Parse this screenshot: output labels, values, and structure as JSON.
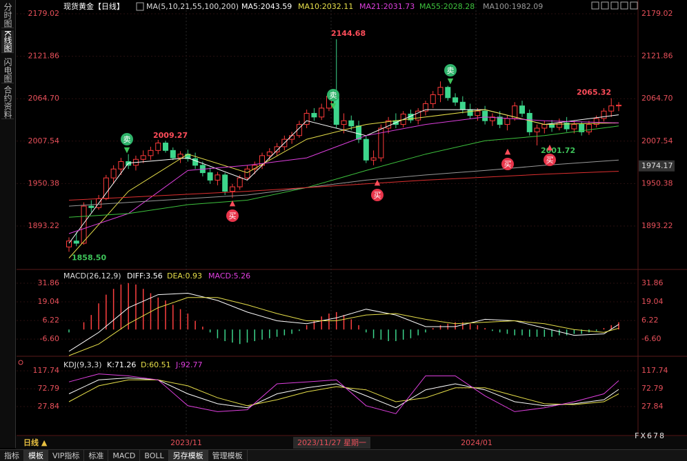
{
  "tabs_left": [
    "分时图",
    "K线图",
    "闪电图",
    "合约资料"
  ],
  "chart_data": [
    {
      "type": "candlestick",
      "title": "现货黄金【日线】",
      "indicator": "MA(5,10,21,55,100,200)",
      "up_color": "#ff3b3b",
      "down_color": "#3dd68c",
      "ylim": [
        1837.5,
        2190.2
      ],
      "yticks": [
        2179.02,
        2121.86,
        {
          "value": 2064.7,
          "label": "2064.70"
        },
        2007.54,
        1950.38,
        1893.22
      ],
      "ohlc": [
        [
          1865,
          1878,
          1858.5,
          1873
        ],
        [
          1873,
          1885,
          1866,
          1870
        ],
        [
          1870,
          1925,
          1868,
          1920
        ],
        [
          1920,
          1928,
          1912,
          1918
        ],
        [
          1918,
          1935,
          1915,
          1930
        ],
        [
          1930,
          1962,
          1928,
          1958
        ],
        [
          1958,
          1975,
          1950,
          1970
        ],
        [
          1970,
          1985,
          1962,
          1980
        ],
        [
          1980,
          1990,
          1970,
          1975
        ],
        [
          1975,
          1988,
          1968,
          1983
        ],
        [
          1983,
          1995,
          1978,
          1988
        ],
        [
          1988,
          2000,
          1982,
          1995
        ],
        [
          1995,
          2009.27,
          1990,
          2005
        ],
        [
          2005,
          2008,
          1992,
          1995
        ],
        [
          1995,
          1999,
          1982,
          1985
        ],
        [
          1985,
          1994,
          1978,
          1990
        ],
        [
          1990,
          1996,
          1980,
          1984
        ],
        [
          1984,
          1992,
          1970,
          1975
        ],
        [
          1975,
          1980,
          1960,
          1965
        ],
        [
          1965,
          1972,
          1950,
          1955
        ],
        [
          1955,
          1966,
          1948,
          1962
        ],
        [
          1962,
          1965,
          1935,
          1940
        ],
        [
          1940,
          1950,
          1931,
          1946
        ],
        [
          1946,
          1962,
          1942,
          1958
        ],
        [
          1958,
          1975,
          1955,
          1970
        ],
        [
          1970,
          1980,
          1963,
          1975
        ],
        [
          1975,
          1992,
          1970,
          1988
        ],
        [
          1988,
          1998,
          1982,
          1993
        ],
        [
          1993,
          2005,
          1988,
          2000
        ],
        [
          2000,
          2015,
          1995,
          2010
        ],
        [
          2010,
          2020,
          2004,
          2015
        ],
        [
          2015,
          2035,
          2012,
          2030
        ],
        [
          2030,
          2050,
          2025,
          2045
        ],
        [
          2045,
          2052,
          2035,
          2040
        ],
        [
          2040,
          2058,
          2036,
          2052
        ],
        [
          2052,
          2072,
          2048,
          2068
        ],
        [
          2068,
          2144.68,
          2025,
          2030
        ],
        [
          2030,
          2045,
          2018,
          2035
        ],
        [
          2035,
          2042,
          2022,
          2028
        ],
        [
          2028,
          2035,
          2005,
          2010
        ],
        [
          2010,
          2015,
          1978,
          1982
        ],
        [
          1982,
          1995,
          1975,
          1985
        ],
        [
          1985,
          2030,
          1980,
          2025
        ],
        [
          2025,
          2040,
          2018,
          2035
        ],
        [
          2035,
          2045,
          2025,
          2030
        ],
        [
          2030,
          2048,
          2026,
          2044
        ],
        [
          2044,
          2050,
          2032,
          2036
        ],
        [
          2036,
          2052,
          2030,
          2048
        ],
        [
          2048,
          2062,
          2042,
          2058
        ],
        [
          2058,
          2075,
          2052,
          2070
        ],
        [
          2070,
          2088,
          2060,
          2080
        ],
        [
          2080,
          2082,
          2062,
          2066
        ],
        [
          2066,
          2072,
          2055,
          2060
        ],
        [
          2060,
          2068,
          2045,
          2050
        ],
        [
          2050,
          2058,
          2038,
          2042
        ],
        [
          2042,
          2052,
          2035,
          2048
        ],
        [
          2048,
          2055,
          2030,
          2035
        ],
        [
          2035,
          2045,
          2028,
          2040
        ],
        [
          2040,
          2048,
          2025,
          2030
        ],
        [
          2030,
          2042,
          2022,
          2038
        ],
        [
          2038,
          2060,
          2035,
          2055
        ],
        [
          2055,
          2062,
          2040,
          2045
        ],
        [
          2045,
          2050,
          2015,
          2020
        ],
        [
          2020,
          2030,
          2001.72,
          2025
        ],
        [
          2025,
          2035,
          2018,
          2030
        ],
        [
          2030,
          2036,
          2020,
          2026
        ],
        [
          2026,
          2038,
          2022,
          2032
        ],
        [
          2032,
          2040,
          2020,
          2024
        ],
        [
          2024,
          2035,
          2018,
          2030
        ],
        [
          2030,
          2034,
          2015,
          2020
        ],
        [
          2020,
          2035,
          2016,
          2030
        ],
        [
          2030,
          2042,
          2026,
          2038
        ],
        [
          2038,
          2052,
          2034,
          2048
        ],
        [
          2048,
          2065.32,
          2040,
          2055
        ],
        [
          2055,
          2060,
          2048,
          2056
        ]
      ],
      "x": [
        0,
        8,
        16,
        24,
        32,
        40,
        48,
        56,
        64,
        74
      ],
      "series": [
        {
          "name": "MA5:2043.59",
          "color": "#ffffff",
          "values": [
            1870,
            1978,
            1985,
            1955,
            2035,
            2015,
            2050,
            2050,
            2030,
            2043
          ]
        },
        {
          "name": "MA10:2032.11",
          "color": "#e8e04a",
          "values": [
            1850,
            1940,
            1990,
            1965,
            2010,
            2030,
            2040,
            2050,
            2030,
            2032
          ]
        },
        {
          "name": "MA21:2031.73",
          "color": "#e040e0",
          "values": [
            1883,
            1910,
            1968,
            1975,
            1985,
            2015,
            2030,
            2040,
            2035,
            2032
          ]
        },
        {
          "name": "MA55:2028.28",
          "color": "#3ec43e",
          "values": [
            1905,
            1910,
            1922,
            1928,
            1945,
            1968,
            1990,
            2008,
            2015,
            2028
          ]
        },
        {
          "name": "MA100:1982.09",
          "color": "#9a9a9a",
          "values": [
            1920,
            1925,
            1930,
            1935,
            1945,
            1955,
            1962,
            1968,
            1975,
            1982
          ]
        },
        {
          "color": "#e03030",
          "values": [
            1928,
            1932,
            1936,
            1940,
            1945,
            1950,
            1955,
            1959,
            1963,
            1967
          ]
        }
      ],
      "annotations": [
        2144.68,
        2009.27,
        1858.5,
        2001.72,
        2065.32
      ],
      "annotation_labels": [
        "2144.68",
        "2009.27",
        "1858.50",
        "2001.72",
        "2065.32"
      ],
      "last_price": 1974.17,
      "signals": [
        "卖",
        "买",
        "卖",
        "买",
        "卖",
        "买",
        "买"
      ]
    },
    {
      "type": "macd",
      "title": "MACD(26,12,9)",
      "hist_label": "MACD:5.26",
      "ylim": [
        -17,
        39
      ],
      "yticks": [
        31.86,
        19.04,
        6.22,
        {
          "value": -6.6,
          "label": "-6.60"
        }
      ],
      "histogram": [
        -2,
        0,
        5,
        10,
        18,
        24,
        28,
        31,
        32,
        31,
        28,
        25,
        22,
        20,
        17,
        14,
        11,
        6,
        2,
        -2,
        -6,
        -8,
        -9,
        -10,
        -9,
        -8,
        -7,
        -6,
        -5,
        -4,
        -3,
        -1,
        3,
        6,
        9,
        11,
        12,
        10,
        7,
        3,
        -2,
        -6,
        -7,
        -8,
        -8,
        -7,
        -6,
        -4,
        -2,
        1,
        3,
        4,
        5,
        5,
        4,
        3,
        1,
        -1,
        -2,
        -3,
        -4,
        -4,
        -5,
        -5,
        -5,
        -5,
        -4,
        -4,
        -3,
        -3,
        -2,
        -1,
        1,
        3,
        5
      ],
      "x": [
        0,
        4,
        8,
        12,
        16,
        20,
        24,
        28,
        32,
        36,
        40,
        44,
        48,
        52,
        56,
        60,
        64,
        68,
        72,
        74
      ],
      "series": [
        {
          "name": "DIFF:3.56",
          "color": "#ffffff",
          "values": [
            -15,
            -2,
            15,
            24,
            25,
            20,
            12,
            6,
            4,
            8,
            14,
            10,
            2,
            2,
            7,
            6,
            1,
            -4,
            -3,
            3.5
          ]
        },
        {
          "name": "DEA:0.93",
          "color": "#e8e04a",
          "values": [
            -18,
            -10,
            4,
            15,
            22,
            22,
            17,
            11,
            6,
            6,
            10,
            11,
            7,
            4,
            5,
            6,
            4,
            0,
            -2,
            0.9
          ]
        }
      ],
      "hist_color_up": "#ff4040",
      "hist_color_down": "#3dd68c",
      "hist_label_color": "#e040e0"
    },
    {
      "type": "kdj",
      "title": "KDJ(9,3,3)",
      "ylim": [
        -41.4,
        145.7
      ],
      "yticks": [
        117.74,
        72.79,
        27.84
      ],
      "x": [
        0,
        4,
        8,
        12,
        16,
        20,
        24,
        28,
        32,
        36,
        40,
        44,
        48,
        52,
        56,
        60,
        64,
        68,
        72,
        74
      ],
      "series": [
        {
          "name": "K:71.26",
          "color": "#ffffff",
          "values": [
            60,
            95,
            100,
            95,
            60,
            35,
            25,
            60,
            75,
            85,
            55,
            25,
            70,
            85,
            70,
            40,
            30,
            35,
            45,
            71
          ]
        },
        {
          "name": "D:60.51",
          "color": "#e8e04a",
          "values": [
            40,
            80,
            95,
            95,
            80,
            50,
            30,
            45,
            65,
            78,
            70,
            40,
            50,
            75,
            75,
            55,
            35,
            33,
            40,
            60
          ]
        },
        {
          "name": "J:92.77",
          "color": "#e040e0",
          "values": [
            90,
            110,
            105,
            95,
            30,
            15,
            20,
            85,
            90,
            95,
            30,
            10,
            105,
            105,
            55,
            15,
            25,
            40,
            60,
            93
          ]
        }
      ]
    }
  ],
  "x_axis": {
    "period": "日线 ▲",
    "labels": [
      "2023/11",
      "2023/11/27 星期一",
      "2024/01"
    ]
  },
  "toolbar": [
    "指标",
    "模板",
    "VIP指标",
    "标准",
    "MACD",
    "BOLL",
    "另存模板",
    "管理模板"
  ],
  "watermark": "FX678"
}
